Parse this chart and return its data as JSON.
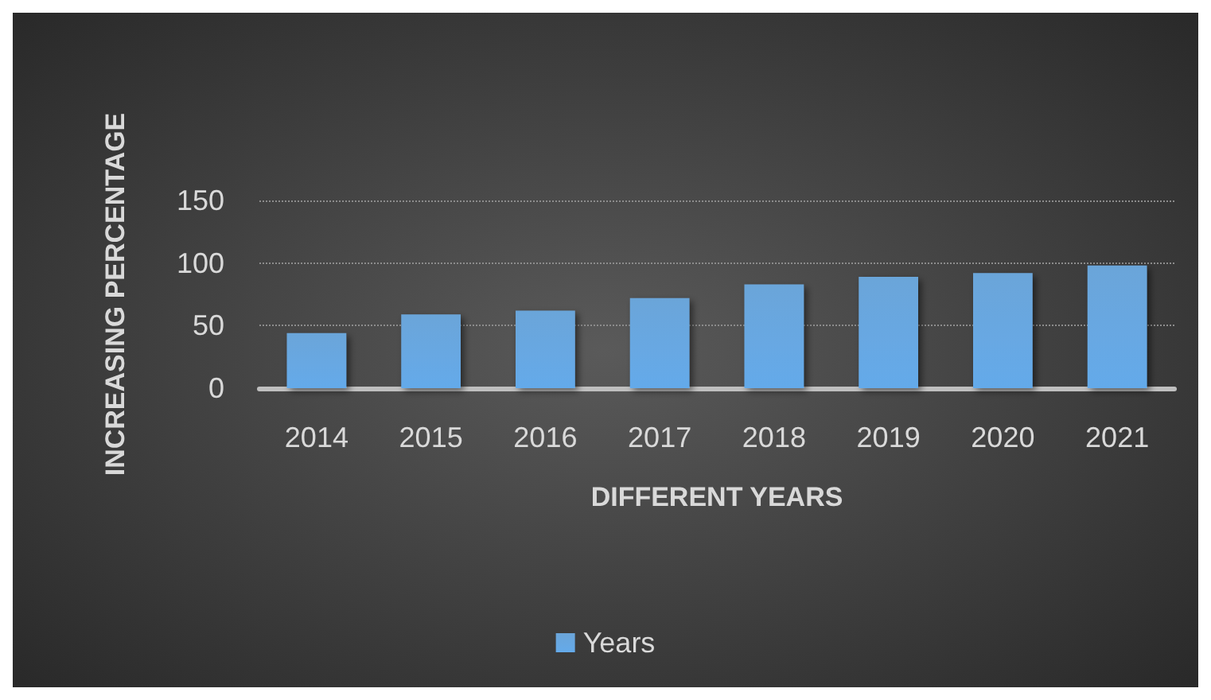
{
  "chart_data": {
    "type": "bar",
    "xlabel": "DIFFERENT YEARS",
    "ylabel": "INCREASING PERCENTAGE",
    "categories": [
      "2014",
      "2015",
      "2016",
      "2017",
      "2018",
      "2019",
      "2020",
      "2021"
    ],
    "series": [
      {
        "name": "Years",
        "color": "#5b9bd5",
        "values": [
          44,
          59,
          62,
          72,
          83,
          89,
          92,
          98
        ]
      }
    ],
    "ylim": [
      0,
      150
    ],
    "yticks": [
      0,
      50,
      100,
      150
    ],
    "grid": "y",
    "legend": "bottom"
  }
}
